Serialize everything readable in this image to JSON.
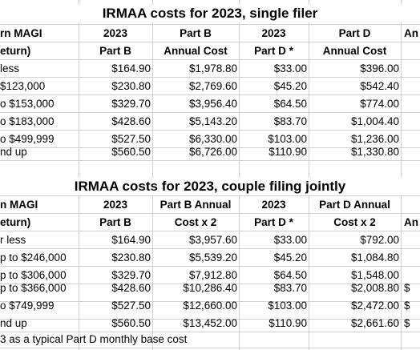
{
  "table1": {
    "title": "IRMAA costs for 2023, single filer",
    "header_row1": [
      "rn MAGI",
      "2023",
      "Part B",
      "2023",
      "Part D",
      "An"
    ],
    "header_row2": [
      "eturn)",
      "Part B",
      "Annual Cost",
      "Part D *",
      "Annual Cost",
      ""
    ],
    "rows": [
      [
        "less",
        "$164.90",
        "$1,978.80",
        "$33.00",
        "$396.00"
      ],
      [
        "$123,000",
        "$230.80",
        "$2,769.60",
        "$45.20",
        "$542.40"
      ],
      [
        "o $153,000",
        "$329.70",
        "$3,956.40",
        "$64.50",
        "$774.00"
      ],
      [
        "o $183,000",
        "$428.60",
        "$5,143.20",
        "$83.70",
        "$1,004.40"
      ],
      [
        "o $499,999",
        "$527.50",
        "$6,330.00",
        "$103.00",
        "$1,236.00"
      ],
      [
        "nd up",
        "$560.50",
        "$6,726.00",
        "$110.90",
        "$1,330.80"
      ]
    ]
  },
  "table2": {
    "title": "IRMAA costs for 2023, couple filing jointly",
    "header_row1": [
      "n MAGI",
      "2023",
      "Part B Annual",
      "2023",
      "Part D Annual",
      "An"
    ],
    "header_row2": [
      "eturn)",
      "Part B",
      "Cost x 2",
      "Part D *",
      "Cost  x 2",
      ""
    ],
    "rows": [
      [
        "r less",
        "$164.90",
        "$3,957.60",
        "$33.00",
        "$792.00",
        ""
      ],
      [
        "p to $246,000",
        "$230.80",
        "$5,539.20",
        "$45.20",
        "$1,084.80",
        ""
      ],
      [
        "p to $306,000",
        "$329.70",
        "$7,912.80",
        "$64.50",
        "$1,548.00",
        ""
      ],
      [
        "p to $366,000",
        "$428.60",
        "$10,286.40",
        "$83.70",
        "$2,008.80",
        "$"
      ],
      [
        "o $749,999",
        "$527.50",
        "$12,660.00",
        "$103.00",
        "$2,472.00",
        "$"
      ],
      [
        "nd up",
        "$560.50",
        "$13,452.00",
        "$110.90",
        "$2,661.60",
        "$"
      ]
    ]
  },
  "footnote": "3 as a typical Part D monthly base cost"
}
